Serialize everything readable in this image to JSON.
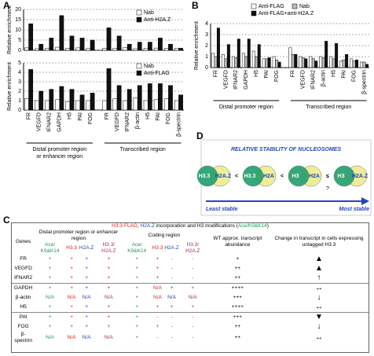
{
  "panel_labels": [
    "A",
    "B",
    "C",
    "D"
  ],
  "chart_data": [
    {
      "type": "bar",
      "ylabel": "Relative enrichment",
      "ylim": [
        0,
        20
      ],
      "yticks": [
        0,
        5,
        10,
        15,
        20
      ],
      "grid": true,
      "legend": "upper right",
      "series": [
        {
          "name": "Nab",
          "color": "#ffffff",
          "values": [
            1.2,
            0.8,
            1,
            1.5,
            1,
            1.2,
            0.9,
            1,
            1,
            1.3,
            0.8,
            1,
            1.1,
            0.9,
            1
          ]
        },
        {
          "name": "Anti-H2A.Z",
          "color": "#111111",
          "values": [
            13,
            3,
            6,
            17,
            7,
            6,
            5,
            11,
            7,
            3,
            4,
            4,
            6,
            3,
            1
          ]
        }
      ]
    },
    {
      "type": "bar",
      "ylabel": "Relative enrichment",
      "ylim": [
        0,
        5
      ],
      "yticks": [
        0,
        1,
        2,
        3,
        4,
        5
      ],
      "grid": true,
      "legend": "upper right",
      "categories": [
        "FR",
        "VEGFD",
        "IFNAR2",
        "GAPDH",
        "H5",
        "PAI",
        "FOG",
        "FR",
        "VEGFD",
        "IFNAR2",
        "β-actin",
        "H5",
        "PAI",
        "FOG",
        "β-spectrin"
      ],
      "annotations": [
        "Distal promoter region or enhancer region",
        "Transcribed region"
      ],
      "series": [
        {
          "name": "Nab",
          "color": "#ffffff",
          "values": [
            1.2,
            1,
            1,
            1.1,
            0.9,
            1,
            1,
            1,
            1.2,
            1,
            1.3,
            1,
            1.1,
            1.2,
            1
          ]
        },
        {
          "name": "Anti-FLAG",
          "color": "#111111",
          "values": [
            4.3,
            2,
            2.2,
            2.5,
            2.2,
            1.6,
            1.8,
            4.4,
            2.6,
            2.2,
            2.6,
            2.8,
            2.8,
            2.6,
            1.6
          ]
        }
      ]
    },
    {
      "type": "bar",
      "ylabel": "Relative enrichment",
      "ylim": [
        0,
        4
      ],
      "yticks": [
        0,
        1,
        2,
        3,
        4
      ],
      "grid": true,
      "legend": "upper right",
      "categories": [
        "FR",
        "VEGFD",
        "IFNAR2",
        "GAPDH",
        "H5",
        "PAI",
        "FOG",
        "FR",
        "VEGFD",
        "IFNAR2",
        "β-actin",
        "H5",
        "PAI",
        "FOG",
        "β-spectrin"
      ],
      "annotations": [
        "Distal promoter region",
        "Transcribed region"
      ],
      "series": [
        {
          "name": "Anti-FLAG",
          "color": "#ffffff",
          "values": [
            1.3,
            1.2,
            1,
            1.3,
            1.5,
            0.8,
            1,
            1.8,
            1,
            1,
            1,
            1,
            0.6,
            0.8,
            0.5
          ]
        },
        {
          "name": "Nab",
          "color": "#bbbbbb",
          "values": [
            1,
            0.8,
            0.9,
            1,
            1,
            0.8,
            0.7,
            1.2,
            0.9,
            0.8,
            0.9,
            0.8,
            0.7,
            0.6,
            0.5
          ]
        },
        {
          "name": "Anti-FLAG+anti-H2A.Z",
          "color": "#111111",
          "values": [
            3.6,
            2.1,
            2.6,
            2.6,
            2.1,
            0.9,
            0.5,
            1.2,
            0.8,
            0.6,
            2.4,
            2.2,
            1.2,
            0.7,
            0.3
          ]
        }
      ]
    }
  ],
  "diagram": {
    "title": "RELATIVE STABILITY OF NUCLEOSOMES",
    "nucleosomes": [
      {
        "left": "H3.3",
        "right": "H2A.Z"
      },
      {
        "left": "H3.3",
        "right": "H2A"
      },
      {
        "left": "H3",
        "right": "H2A"
      },
      {
        "left": "H3",
        "right": "H2A.Z"
      }
    ],
    "relations": [
      "<",
      "<",
      "≤"
    ],
    "uncertain": "?",
    "least": "Least stable",
    "most": "Most stable"
  },
  "table": {
    "title": [
      "H3.3-FLAG",
      ", ",
      "H2A.Z",
      " incorporation and H3 modifications (",
      "Ace/K9&K14",
      ")"
    ],
    "genes_header": "Genes",
    "groups": [
      "Distal promoter region or enhancer region",
      "Coding region"
    ],
    "subheaders": [
      "Ace/ K9&K14",
      "H3.3",
      "H2A.Z",
      "H3.3/ H2A.Z"
    ],
    "abundance_header": "WT approx. transcript abundance",
    "change_header": "Change in transcript in cells expressing untagged H3.3",
    "rows": [
      [
        "FR",
        "+",
        "+",
        "+",
        "+",
        "+",
        "+",
        "-",
        "-",
        "+",
        "▲"
      ],
      [
        "VEGFD",
        "+",
        "+",
        "+",
        "+",
        "+",
        "+",
        "-",
        "-",
        "++",
        "▲"
      ],
      [
        "IFNAR2",
        "+",
        "+",
        "+",
        "+",
        "+",
        "+",
        "-",
        "-",
        "++",
        "↑"
      ],
      [
        "GAPDH",
        "+",
        "+",
        "+",
        "+",
        "+",
        "N/A",
        "+",
        "+",
        "++++",
        "↔"
      ],
      [
        "β-actin",
        "N/A",
        "N/A",
        "N/A",
        "N/A",
        "+",
        "N/A",
        "N/A",
        "N/A",
        "+++",
        "↓"
      ],
      [
        "H5",
        "+",
        "+",
        "+",
        "+",
        "+",
        "+",
        "+",
        "+",
        "++++",
        "↔"
      ],
      [
        "PAI",
        "+",
        "+",
        "+",
        "+",
        "+",
        "-",
        "-",
        "-",
        "+++",
        "▼"
      ],
      [
        "FOG",
        "+",
        "+",
        "+",
        "+",
        "+",
        "+",
        "-",
        "-",
        "++",
        "↓"
      ],
      [
        "β-spectrin",
        "N/A",
        "N/A",
        "N/A",
        "N/A",
        "+",
        "-",
        "-",
        "-",
        "++",
        "↔"
      ]
    ]
  }
}
